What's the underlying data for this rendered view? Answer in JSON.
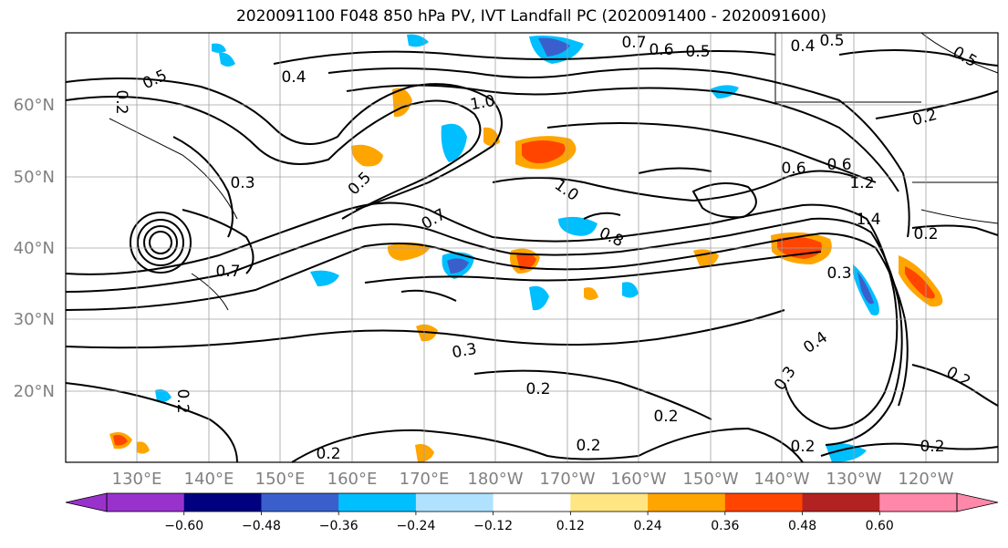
{
  "chart_data": {
    "type": "heatmap",
    "title": "2020091100 F048 850 hPa PV, IVT Landfall PC (2020091400 - 2020091600)",
    "lat_ticks": [
      "20°N",
      "30°N",
      "40°N",
      "50°N",
      "60°N"
    ],
    "lon_ticks": [
      "130°E",
      "140°E",
      "150°E",
      "160°E",
      "170°E",
      "180°W",
      "170°W",
      "160°W",
      "150°W",
      "140°W",
      "130°W",
      "120°W"
    ],
    "grid": true,
    "colorbar": {
      "position": "bottom",
      "extend": "both",
      "ticks": [
        "−0.60",
        "−0.48",
        "−0.36",
        "−0.24",
        "−0.12",
        "0.12",
        "0.24",
        "0.36",
        "0.48",
        "0.60"
      ],
      "colors": [
        "#9932cc",
        "#000080",
        "#3a5fcd",
        "#00bfff",
        "#b0e2ff",
        "#ffffff",
        "#ffe682",
        "#ffa500",
        "#ff4500",
        "#b22222",
        "#ff88aa"
      ]
    },
    "contour_labels": [
      "0.5",
      "0.4",
      "1.0",
      "0.7",
      "0.6",
      "0.5",
      "0.4",
      "0.5",
      "0.5",
      "0.2",
      "0.3",
      "0.5",
      "1.0",
      "0.6",
      "1.2",
      "1.4",
      "0.2",
      "0.7",
      "0.8",
      "0.3",
      "0.7",
      "0.3",
      "0.2",
      "0.2",
      "0.2",
      "0.2",
      "0.2",
      "0.4",
      "0.3",
      "0.2",
      "0.2",
      "0.6",
      "0.2",
      "0.2"
    ]
  }
}
